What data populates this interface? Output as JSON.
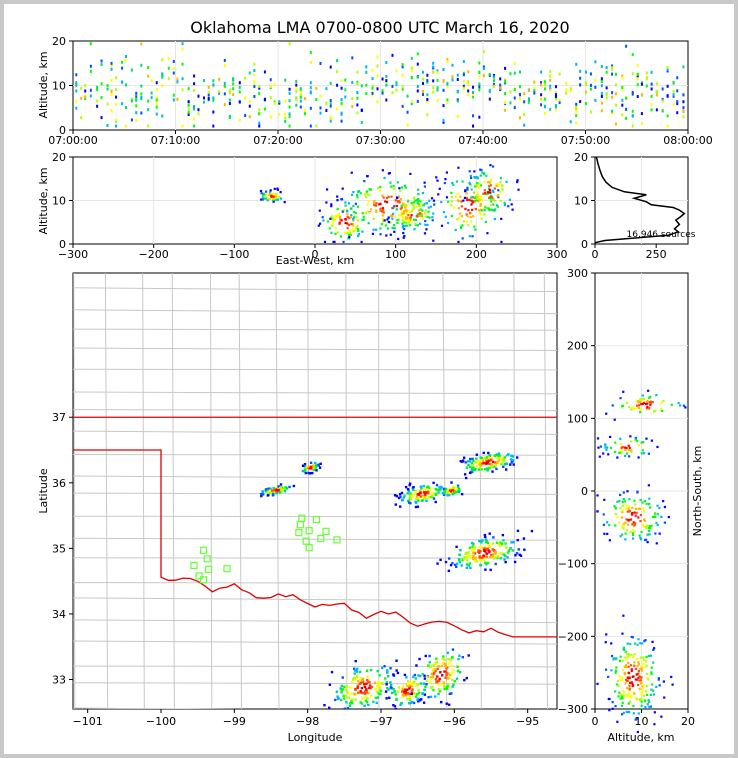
{
  "chart_data": [
    {
      "panel": "time-altitude",
      "type": "heatmap",
      "title": "Oklahoma LMA 0700-0800 UTC March 16, 2020",
      "ylabel": "Altitude, km",
      "xlabel": "",
      "xlim": [
        "07:00:00",
        "08:00:00"
      ],
      "ylim": [
        0,
        20
      ],
      "xticks": [
        "07:00:00",
        "07:10:00",
        "07:20:00",
        "07:30:00",
        "07:40:00",
        "07:50:00",
        "08:00:00"
      ],
      "yticks": [
        "0",
        "10",
        "20"
      ],
      "grid": true
    },
    {
      "panel": "east-west-altitude",
      "type": "heatmap",
      "xlabel": "East-West, km",
      "ylabel": "Altitude, km",
      "xlim": [
        -300,
        300
      ],
      "ylim": [
        0,
        20
      ],
      "xticks": [
        "−300",
        "−200",
        "−100",
        "0",
        "100",
        "200",
        "300"
      ],
      "yticks": [
        "0",
        "10",
        "20"
      ],
      "grid": true,
      "clusters": [
        {
          "x": -55,
          "z": 11,
          "sx": 8,
          "sz": 0.6
        },
        {
          "x": 35,
          "z": 5,
          "sx": 15,
          "sz": 2.5
        },
        {
          "x": 90,
          "z": 9,
          "sx": 30,
          "sz": 3.5
        },
        {
          "x": 120,
          "z": 7,
          "sx": 15,
          "sz": 2
        },
        {
          "x": 190,
          "z": 9,
          "sx": 20,
          "sz": 4
        },
        {
          "x": 215,
          "z": 12,
          "sx": 15,
          "sz": 3
        }
      ]
    },
    {
      "panel": "altitude-histogram",
      "type": "line",
      "xlim": [
        0,
        380
      ],
      "ylim": [
        0,
        20
      ],
      "xticks": [
        "0",
        "250"
      ],
      "yticks": [
        "0",
        "10",
        "20"
      ],
      "annotation": "16,946 sources",
      "profile": [
        [
          0,
          0.3
        ],
        [
          40,
          0.8
        ],
        [
          150,
          1.3
        ],
        [
          300,
          2
        ],
        [
          340,
          2.8
        ],
        [
          325,
          3.5
        ],
        [
          345,
          4.5
        ],
        [
          330,
          5.5
        ],
        [
          350,
          6.3
        ],
        [
          365,
          7
        ],
        [
          345,
          7.8
        ],
        [
          320,
          8.4
        ],
        [
          230,
          9
        ],
        [
          210,
          9.7
        ],
        [
          160,
          10.5
        ],
        [
          210,
          11.3
        ],
        [
          120,
          12
        ],
        [
          70,
          13
        ],
        [
          45,
          14.2
        ],
        [
          30,
          15.5
        ],
        [
          20,
          17
        ],
        [
          12,
          18.5
        ],
        [
          8,
          19.5
        ],
        [
          5,
          20
        ]
      ]
    },
    {
      "panel": "plan-view",
      "type": "scatter",
      "xlabel": "Longitude",
      "ylabel": "Latitude",
      "xlim": [
        -101.2,
        -94.6
      ],
      "ylim": [
        32.55,
        39.2
      ],
      "xticks": [
        "−101",
        "−100",
        "−99",
        "−98",
        "−97",
        "−96",
        "−95"
      ],
      "yticks": [
        "33",
        "34",
        "35",
        "36",
        "37"
      ],
      "boundary_color": "#e00000",
      "station_color": "#66ff33",
      "stations": [
        [
          -98.08,
          35.46
        ],
        [
          -98.1,
          35.36
        ],
        [
          -97.88,
          35.44
        ],
        [
          -98.12,
          35.24
        ],
        [
          -97.98,
          35.27
        ],
        [
          -97.75,
          35.26
        ],
        [
          -98.02,
          35.11
        ],
        [
          -97.82,
          35.15
        ],
        [
          -97.98,
          35.01
        ],
        [
          -97.6,
          35.13
        ],
        [
          -99.42,
          34.97
        ],
        [
          -99.37,
          34.84
        ],
        [
          -99.55,
          34.74
        ],
        [
          -99.35,
          34.68
        ],
        [
          -99.48,
          34.58
        ],
        [
          -99.42,
          34.52
        ],
        [
          -99.1,
          34.69
        ]
      ],
      "clusters": [
        {
          "lon": -95.55,
          "lat": 36.33,
          "slon": 0.22,
          "slat": 0.07
        },
        {
          "lon": -96.45,
          "lat": 35.85,
          "slon": 0.18,
          "slat": 0.07
        },
        {
          "lon": -96.05,
          "lat": 35.9,
          "slon": 0.08,
          "slat": 0.04
        },
        {
          "lon": -95.6,
          "lat": 34.95,
          "slon": 0.28,
          "slat": 0.12
        },
        {
          "lon": -98.45,
          "lat": 35.9,
          "slon": 0.12,
          "slat": 0.03
        },
        {
          "lon": -97.98,
          "lat": 36.25,
          "slon": 0.07,
          "slat": 0.04
        },
        {
          "lon": -97.25,
          "lat": 32.9,
          "slon": 0.25,
          "slat": 0.18
        },
        {
          "lon": -96.65,
          "lat": 32.85,
          "slon": 0.15,
          "slat": 0.12
        },
        {
          "lon": -96.2,
          "lat": 33.1,
          "slon": 0.2,
          "slat": 0.2
        }
      ]
    },
    {
      "panel": "altitude-north-south",
      "type": "heatmap",
      "xlabel": "Altitude, km",
      "ylabel": "North-South, km",
      "xlim": [
        0,
        20
      ],
      "ylim": [
        -300,
        300
      ],
      "xticks": [
        "0",
        "10",
        "20"
      ],
      "yticks": [
        "−300",
        "−200",
        "−100",
        "0",
        "100",
        "200",
        "300"
      ],
      "grid": true,
      "clusters": [
        {
          "z": 11,
          "y": 120,
          "sz": 4,
          "sy": 8
        },
        {
          "z": 7,
          "y": 62,
          "sz": 3,
          "sy": 7
        },
        {
          "z": 8,
          "y": -35,
          "sz": 3.5,
          "sy": 18
        },
        {
          "z": 8,
          "y": -255,
          "sz": 3,
          "sy": 30
        }
      ]
    }
  ]
}
